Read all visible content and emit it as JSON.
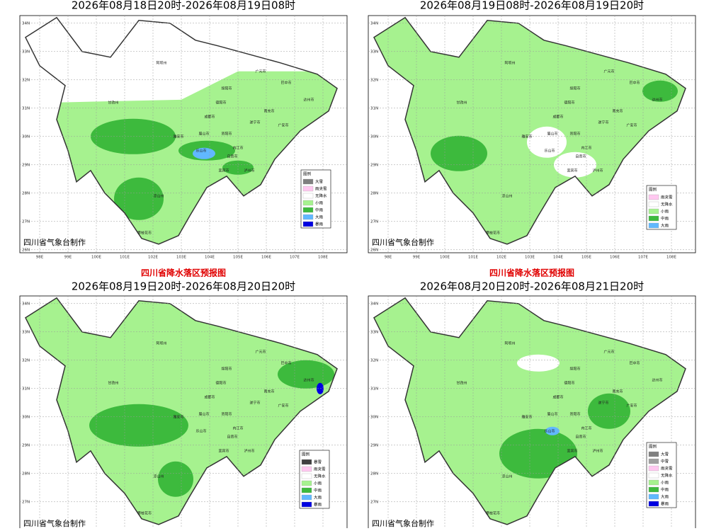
{
  "panels": [
    {
      "date": "2026年08月18日20时-2026年08月19日08时",
      "credit": "四川省气象台制作",
      "legend_title": "图例",
      "legend": [
        {
          "label": "大雪",
          "color": "#7f7f7f"
        },
        {
          "label": "雨夹雪",
          "color": "#ffc8f0"
        },
        {
          "label": "无降水",
          "color": "#ffffff"
        },
        {
          "label": "小雨",
          "color": "#a6f28f"
        },
        {
          "label": "中雨",
          "color": "#3dba3d"
        },
        {
          "label": "大雨",
          "color": "#61b8ff"
        },
        {
          "label": "暴雨",
          "color": "#0000e1"
        }
      ]
    },
    {
      "date": "2026年08月19日08时-2026年08月19日20时",
      "credit": "四川省气象台制作",
      "legend_title": "图例",
      "legend": [
        {
          "label": "雨夹雪",
          "color": "#ffc8f0"
        },
        {
          "label": "无降水",
          "color": "#ffffff"
        },
        {
          "label": "小雨",
          "color": "#a6f28f"
        },
        {
          "label": "中雨",
          "color": "#3dba3d"
        },
        {
          "label": "大雨",
          "color": "#61b8ff"
        }
      ]
    },
    {
      "heading": "四川省降水落区预报图",
      "date": "2026年08月19日20时-2026年08月20日20时",
      "credit": "四川省气象台制作",
      "legend_title": "图例",
      "legend": [
        {
          "label": "暴雪",
          "color": "#404040"
        },
        {
          "label": "雨夹雪",
          "color": "#ffc8f0"
        },
        {
          "label": "无降水",
          "color": "#ffffff"
        },
        {
          "label": "小雨",
          "color": "#a6f28f"
        },
        {
          "label": "中雨",
          "color": "#3dba3d"
        },
        {
          "label": "大雨",
          "color": "#61b8ff"
        },
        {
          "label": "暴雨",
          "color": "#0000e1"
        }
      ]
    },
    {
      "heading": "四川省降水落区预报图",
      "date": "2026年08月20日20时-2026年08月21日20时",
      "credit": "四川省气象台制作",
      "legend_title": "图例",
      "legend": [
        {
          "label": "大雪",
          "color": "#7f7f7f"
        },
        {
          "label": "中雪",
          "color": "#a0a0a0"
        },
        {
          "label": "雨夹雪",
          "color": "#ffc8f0"
        },
        {
          "label": "无降水",
          "color": "#ffffff"
        },
        {
          "label": "小雨",
          "color": "#a6f28f"
        },
        {
          "label": "中雨",
          "color": "#3dba3d"
        },
        {
          "label": "大雨",
          "color": "#61b8ff"
        },
        {
          "label": "暴雨",
          "color": "#0000e1"
        }
      ]
    }
  ],
  "lat_ticks": [
    {
      "value": 34,
      "label": "34N"
    },
    {
      "value": 33,
      "label": "33N"
    },
    {
      "value": 32,
      "label": "32N"
    },
    {
      "value": 31,
      "label": "31N"
    },
    {
      "value": 30,
      "label": "30N"
    },
    {
      "value": 29,
      "label": "29N"
    },
    {
      "value": 28,
      "label": "28N"
    },
    {
      "value": 27,
      "label": "27N"
    },
    {
      "value": 26,
      "label": "26N"
    }
  ],
  "lon_ticks": [
    {
      "value": 98,
      "label": "98E"
    },
    {
      "value": 99,
      "label": "99E"
    },
    {
      "value": 100,
      "label": "100E"
    },
    {
      "value": 101,
      "label": "101E"
    },
    {
      "value": 102,
      "label": "102E"
    },
    {
      "value": 103,
      "label": "103E"
    },
    {
      "value": 104,
      "label": "104E"
    },
    {
      "value": 105,
      "label": "105E"
    },
    {
      "value": 106,
      "label": "106E"
    },
    {
      "value": 107,
      "label": "107E"
    },
    {
      "value": 108,
      "label": "108E"
    }
  ],
  "cities": [
    "阿坝州",
    "绵阳市",
    "广元市",
    "巴中市",
    "达州市",
    "南充市",
    "德阳市",
    "成都市",
    "遂宁市",
    "广安市",
    "甘孜州",
    "雅安市",
    "眉山市",
    "资阳市",
    "内江市",
    "乐山市",
    "自贡市",
    "宜宾市",
    "泸州市",
    "凉山州",
    "攀枝花市"
  ]
}
